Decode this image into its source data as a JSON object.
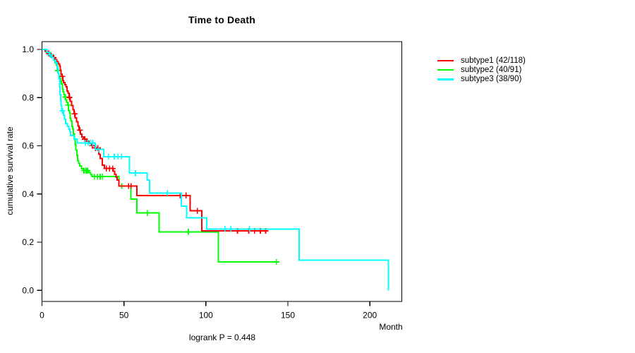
{
  "figure": {
    "title": "Time to Death",
    "x_label": "Month",
    "y_label": "cumulative survival rate",
    "footnote": "logrank P = 0.448"
  },
  "chart_data": {
    "type": "line",
    "subtype": "kaplan-meier-step-curves",
    "title": "Time to Death",
    "xlabel": "Month",
    "ylabel": "cumulative survival rate",
    "annotation": "logrank P = 0.448",
    "xlim": [
      0,
      219.5
    ],
    "ylim": [
      0.0,
      1.0
    ],
    "x_ticks": [
      0,
      50,
      100,
      150,
      200
    ],
    "y_ticks": [
      0.0,
      0.2,
      0.4,
      0.6,
      0.8,
      1.0
    ],
    "grid": false,
    "legend_position": "right-outside",
    "censor_marker": "plus",
    "series": [
      {
        "name": "subtype1 (42/118)",
        "color": "#ff0000",
        "steps": [
          [
            0,
            1.0
          ],
          [
            2,
            0.992
          ],
          [
            3.5,
            0.983
          ],
          [
            5,
            0.975
          ],
          [
            6.5,
            0.966
          ],
          [
            8,
            0.958
          ],
          [
            9,
            0.949
          ],
          [
            10,
            0.94
          ],
          [
            10.8,
            0.931
          ],
          [
            11.2,
            0.914
          ],
          [
            11.6,
            0.897
          ],
          [
            12.1,
            0.888
          ],
          [
            12.6,
            0.871
          ],
          [
            13.2,
            0.862
          ],
          [
            14,
            0.853
          ],
          [
            14.7,
            0.844
          ],
          [
            15.3,
            0.827
          ],
          [
            15.9,
            0.818
          ],
          [
            16.5,
            0.801
          ],
          [
            17.3,
            0.784
          ],
          [
            18.1,
            0.767
          ],
          [
            18.9,
            0.75
          ],
          [
            19.6,
            0.733
          ],
          [
            20.3,
            0.716
          ],
          [
            21.1,
            0.699
          ],
          [
            21.9,
            0.682
          ],
          [
            22.7,
            0.665
          ],
          [
            23.5,
            0.648
          ],
          [
            24.3,
            0.637
          ],
          [
            25.4,
            0.628
          ],
          [
            27.2,
            0.619
          ],
          [
            28.6,
            0.61
          ],
          [
            30.4,
            0.601
          ],
          [
            32.2,
            0.591
          ],
          [
            34.7,
            0.565
          ],
          [
            35.5,
            0.547
          ],
          [
            36.9,
            0.52
          ],
          [
            38,
            0.506
          ],
          [
            43.5,
            0.494
          ],
          [
            44.3,
            0.482
          ],
          [
            45.1,
            0.47
          ],
          [
            45.9,
            0.458
          ],
          [
            47,
            0.433
          ],
          [
            57.8,
            0.394
          ],
          [
            90.3,
            0.33
          ],
          [
            97.5,
            0.247
          ]
        ],
        "end_month": 136.8,
        "censor_months": [
          4.2,
          7.2,
          12.4,
          16.8,
          19.9,
          23.1,
          26.2,
          30.7,
          32.7,
          34.1,
          39.3,
          41.2,
          43.1,
          52.8,
          54.3,
          84.3,
          87.9,
          94.8,
          119.2,
          126.1,
          129.7,
          133.2,
          136.4
        ]
      },
      {
        "name": "subtype2 (40/91)",
        "color": "#00ff00",
        "steps": [
          [
            0,
            1.0
          ],
          [
            2.5,
            0.989
          ],
          [
            4.5,
            0.978
          ],
          [
            6,
            0.967
          ],
          [
            7,
            0.956
          ],
          [
            8,
            0.945
          ],
          [
            8.9,
            0.934
          ],
          [
            9.4,
            0.912
          ],
          [
            9.9,
            0.901
          ],
          [
            10.4,
            0.89
          ],
          [
            10.9,
            0.879
          ],
          [
            11.4,
            0.868
          ],
          [
            11.9,
            0.857
          ],
          [
            12.4,
            0.835
          ],
          [
            12.9,
            0.824
          ],
          [
            13.4,
            0.813
          ],
          [
            13.9,
            0.802
          ],
          [
            14.5,
            0.791
          ],
          [
            15.1,
            0.78
          ],
          [
            15.7,
            0.769
          ],
          [
            16.2,
            0.747
          ],
          [
            16.7,
            0.736
          ],
          [
            17.2,
            0.714
          ],
          [
            17.7,
            0.703
          ],
          [
            18.2,
            0.681
          ],
          [
            18.7,
            0.67
          ],
          [
            19.2,
            0.648
          ],
          [
            19.7,
            0.626
          ],
          [
            20.2,
            0.604
          ],
          [
            20.7,
            0.582
          ],
          [
            21.2,
            0.56
          ],
          [
            21.8,
            0.538
          ],
          [
            22.4,
            0.527
          ],
          [
            23.1,
            0.516
          ],
          [
            24.1,
            0.505
          ],
          [
            25.2,
            0.497
          ],
          [
            28.6,
            0.489
          ],
          [
            29.6,
            0.48
          ],
          [
            30.6,
            0.472
          ],
          [
            47,
            0.433
          ],
          [
            54.2,
            0.379
          ],
          [
            57.8,
            0.321
          ],
          [
            71.4,
            0.243
          ],
          [
            107.5,
            0.118
          ]
        ],
        "end_month": 143.3,
        "censor_months": [
          5.2,
          9.7,
          14.2,
          16.0,
          25.6,
          26.9,
          27.8,
          31.9,
          33.9,
          35.5,
          36.9,
          48.6,
          64.2,
          89.3,
          143.0
        ]
      },
      {
        "name": "subtype3 (38/90)",
        "color": "#00ffff",
        "steps": [
          [
            0,
            1.0
          ],
          [
            3,
            0.989
          ],
          [
            4.5,
            0.978
          ],
          [
            6,
            0.966
          ],
          [
            7.2,
            0.955
          ],
          [
            8.4,
            0.944
          ],
          [
            9.3,
            0.922
          ],
          [
            9.9,
            0.9
          ],
          [
            10.4,
            0.878
          ],
          [
            10.7,
            0.845
          ],
          [
            11,
            0.812
          ],
          [
            11.3,
            0.789
          ],
          [
            11.7,
            0.767
          ],
          [
            12.1,
            0.745
          ],
          [
            13.2,
            0.728
          ],
          [
            13.8,
            0.71
          ],
          [
            14.4,
            0.692
          ],
          [
            15.5,
            0.681
          ],
          [
            16.4,
            0.669
          ],
          [
            16.9,
            0.658
          ],
          [
            17.4,
            0.643
          ],
          [
            19.5,
            0.628
          ],
          [
            21.5,
            0.612
          ],
          [
            32.6,
            0.585
          ],
          [
            37.6,
            0.555
          ],
          [
            53.4,
            0.487
          ],
          [
            64.2,
            0.458
          ],
          [
            65.7,
            0.404
          ],
          [
            85.1,
            0.35
          ],
          [
            88.3,
            0.301
          ],
          [
            100.6,
            0.255
          ],
          [
            156.9,
            0.125
          ],
          [
            211.3,
            0.0
          ]
        ],
        "end_month": 211.3,
        "censor_months": [
          4.8,
          12.5,
          26.6,
          28.1,
          29.6,
          31.0,
          34.6,
          40.6,
          44.1,
          46.4,
          48.5,
          57.0,
          76.5,
          111.6,
          115.3,
          126.7
        ]
      }
    ]
  }
}
